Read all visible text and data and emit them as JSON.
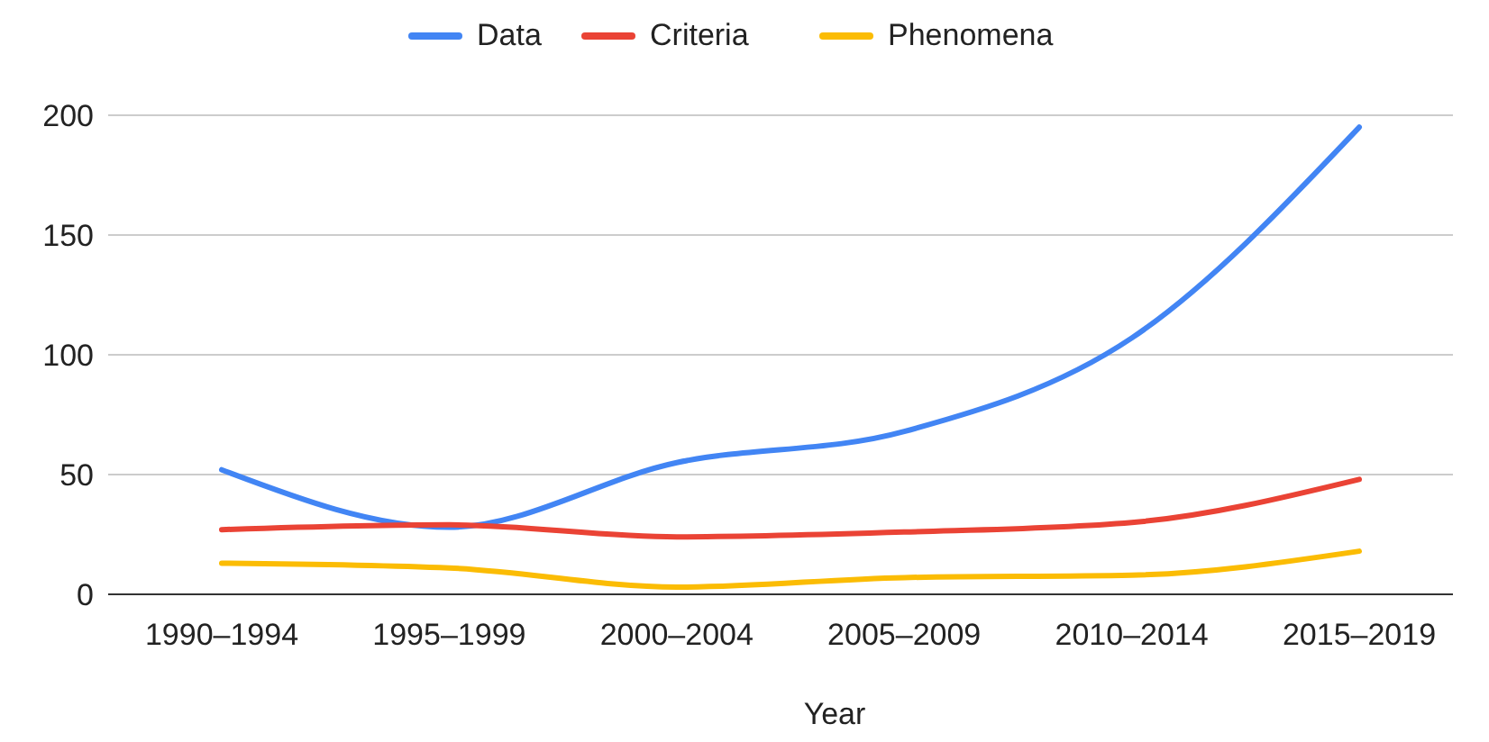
{
  "chart_data": {
    "type": "line",
    "xlabel": "Year",
    "categories": [
      "1990–1994",
      "1995–1999",
      "2000–2004",
      "2005–2009",
      "2010–2014",
      "2015–2019"
    ],
    "series": [
      {
        "name": "Data",
        "color": "#4285f4",
        "values": [
          52,
          28,
          55,
          68,
          107,
          195
        ]
      },
      {
        "name": "Criteria",
        "color": "#ea4335",
        "values": [
          27,
          29,
          24,
          26,
          30,
          48
        ]
      },
      {
        "name": "Phenomena",
        "color": "#fbbc04",
        "values": [
          13,
          11,
          3,
          7,
          8,
          18
        ]
      }
    ],
    "ylim": [
      0,
      200
    ],
    "yticks": [
      0,
      50,
      100,
      150,
      200
    ],
    "grid": "y",
    "legend": "top",
    "marker": "none",
    "line_style": "solid"
  }
}
